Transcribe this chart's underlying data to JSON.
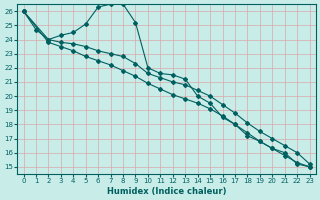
{
  "xlabel": "Humidex (Indice chaleur)",
  "ylabel": "",
  "bg_color": "#c8ece8",
  "grid_color": "#c0dcd8",
  "line_color": "#006060",
  "xlim": [
    -0.5,
    23.5
  ],
  "ylim": [
    14.5,
    26.5
  ],
  "xticks": [
    0,
    1,
    2,
    3,
    4,
    5,
    6,
    7,
    8,
    9,
    10,
    11,
    12,
    13,
    14,
    15,
    16,
    17,
    18,
    19,
    20,
    21,
    22,
    23
  ],
  "yticks": [
    15,
    16,
    17,
    18,
    19,
    20,
    21,
    22,
    23,
    24,
    25,
    26
  ],
  "line1_x": [
    0,
    1,
    2,
    3,
    4,
    5,
    6,
    7,
    8,
    9,
    10,
    11,
    12,
    13,
    14,
    15,
    16,
    17,
    18,
    19,
    20,
    21,
    22,
    23
  ],
  "line1_y": [
    26.0,
    24.7,
    24.0,
    24.3,
    24.5,
    25.1,
    26.3,
    26.5,
    26.5,
    25.2,
    22.0,
    21.6,
    21.5,
    21.2,
    20.0,
    19.5,
    18.5,
    18.0,
    17.2,
    16.8,
    16.3,
    16.0,
    15.2,
    15.0
  ],
  "line2_x": [
    0,
    2,
    3,
    4,
    5,
    6,
    7,
    8,
    9,
    10,
    11,
    12,
    13,
    14,
    15,
    16,
    17,
    18,
    19,
    20,
    21,
    22,
    23
  ],
  "line2_y": [
    26.0,
    24.0,
    23.8,
    23.7,
    23.5,
    23.2,
    23.0,
    22.8,
    22.3,
    21.6,
    21.3,
    21.0,
    20.8,
    20.4,
    20.0,
    19.4,
    18.8,
    18.1,
    17.5,
    17.0,
    16.5,
    16.0,
    15.2
  ],
  "line3_x": [
    0,
    2,
    3,
    4,
    5,
    6,
    7,
    8,
    9,
    10,
    11,
    12,
    13,
    14,
    15,
    16,
    17,
    18,
    19,
    20,
    21,
    22,
    23
  ],
  "line3_y": [
    26.0,
    23.8,
    23.5,
    23.2,
    22.8,
    22.5,
    22.2,
    21.8,
    21.4,
    20.9,
    20.5,
    20.1,
    19.8,
    19.5,
    19.1,
    18.6,
    18.0,
    17.4,
    16.8,
    16.3,
    15.8,
    15.3,
    15.0
  ]
}
